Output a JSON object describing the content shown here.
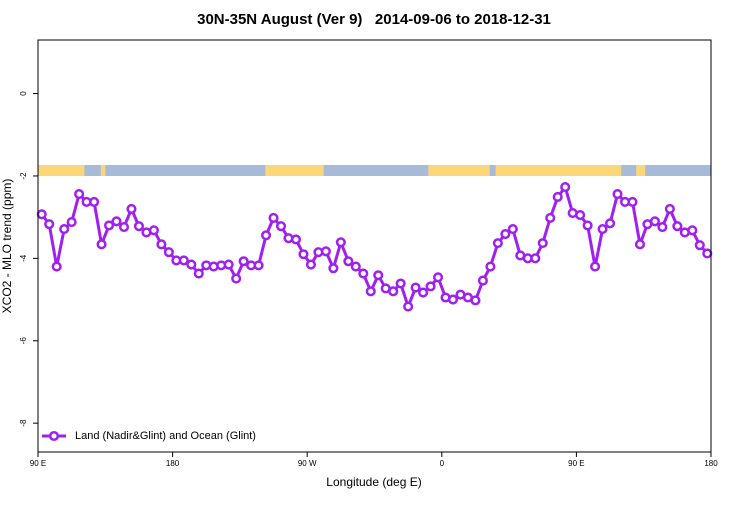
{
  "chart_data": {
    "type": "line",
    "title": "30N-35N August (Ver 9)   2014-09-06 to 2018-12-31",
    "x_label": "Longitude (deg E)",
    "y_label": "XCO2 - MLO trend (ppm)",
    "x": [
      92.5,
      97.5,
      102.5,
      107.5,
      112.5,
      117.5,
      122.5,
      127.5,
      132.5,
      137.5,
      142.5,
      147.5,
      152.5,
      157.5,
      162.5,
      167.5,
      172.5,
      177.5,
      182.5,
      187.5,
      192.5,
      197.5,
      202.5,
      207.5,
      212.5,
      217.5,
      222.5,
      227.5,
      232.5,
      237.5,
      242.5,
      247.5,
      252.5,
      257.5,
      262.5,
      267.5,
      272.5,
      277.5,
      282.5,
      287.5,
      292.5,
      297.5,
      302.5,
      307.5,
      312.5,
      317.5,
      322.5,
      327.5,
      332.5,
      337.5,
      342.5,
      347.5,
      352.5,
      357.5,
      362.5,
      367.5,
      372.5,
      377.5,
      382.5,
      387.5,
      392.5,
      397.5,
      402.5,
      407.5,
      412.5,
      417.5,
      422.5,
      427.5,
      432.5,
      437.5,
      442.5,
      447.5,
      452.5,
      457.5,
      462.5,
      467.5,
      472.5,
      477.5,
      482.5,
      487.5,
      492.5,
      497.5,
      502.5,
      507.5,
      512.5,
      517.5,
      522.5,
      527.5,
      532.5,
      537.5
    ],
    "series": [
      {
        "name": "Land (Nadir&Glint) and Ocean (Glint)",
        "color": "#a020f0",
        "values": [
          -2.93,
          -3.17,
          -4.2,
          -3.29,
          -3.12,
          -2.44,
          -2.63,
          -2.63,
          -3.66,
          -3.2,
          -3.1,
          -3.24,
          -2.8,
          -3.22,
          -3.37,
          -3.32,
          -3.66,
          -3.85,
          -4.05,
          -4.05,
          -4.15,
          -4.37,
          -4.17,
          -4.2,
          -4.17,
          -4.15,
          -4.49,
          -4.07,
          -4.17,
          -4.17,
          -3.44,
          -3.02,
          -3.22,
          -3.51,
          -3.54,
          -3.9,
          -4.15,
          -3.85,
          -3.83,
          -4.24,
          -3.61,
          -4.07,
          -4.2,
          -4.37,
          -4.8,
          -4.41,
          -4.73,
          -4.8,
          -4.61,
          -5.17,
          -4.71,
          -4.83,
          -4.68,
          -4.46,
          -4.95,
          -5.0,
          -4.88,
          -4.95,
          -5.02,
          -4.54,
          -4.2,
          -3.63,
          -3.41,
          -3.29,
          -3.93,
          -4.0,
          -4.0,
          -3.63,
          -3.02,
          -2.51,
          -2.27,
          -2.9,
          -2.95,
          -3.2,
          -4.2,
          -3.29,
          -3.15,
          -2.44,
          -2.63,
          -2.63,
          -3.66,
          -3.17,
          -3.1,
          -3.24,
          -2.8,
          -3.22,
          -3.37,
          -3.32,
          -3.68,
          -3.88
        ]
      }
    ],
    "xlim": [
      90,
      540
    ],
    "xticks": [
      {
        "value": 90,
        "label": "90 E"
      },
      {
        "value": 180,
        "label": "180"
      },
      {
        "value": 270,
        "label": "90 W"
      },
      {
        "value": 360,
        "label": "0"
      },
      {
        "value": 450,
        "label": "90 E"
      },
      {
        "value": 540,
        "label": "180"
      }
    ],
    "ylim": [
      -8.7,
      1.3
    ],
    "yticks": [
      0,
      -2,
      -4,
      -6,
      -8
    ],
    "land_ranges": [
      [
        90,
        121
      ],
      [
        132,
        135
      ],
      [
        242,
        281
      ],
      [
        351,
        392
      ],
      [
        396,
        480
      ],
      [
        490,
        496
      ]
    ],
    "land_color": "#fcd77a",
    "ocean_color": "#a7bbd9",
    "legend": "bottom-left"
  }
}
